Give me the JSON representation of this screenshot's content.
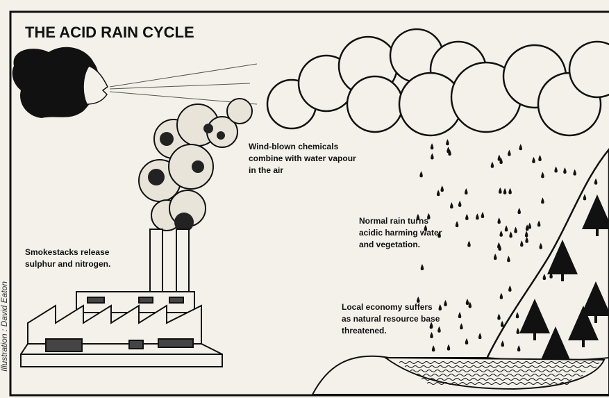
{
  "title": "THE ACID RAIN CYCLE",
  "credit": "Illustration : David Eaton",
  "labels": [
    {
      "lines": [
        "Wind-blown chemicals",
        "combine with water vapour",
        "in the air"
      ]
    },
    {
      "lines": [
        "Smokestacks release",
        "sulphur and nitrogen."
      ]
    },
    {
      "lines": [
        "Normal rain turns",
        "acidic harming water",
        "and vegetation."
      ]
    },
    {
      "lines": [
        "Local economy suffers",
        "as natural resource base",
        "threatened."
      ]
    }
  ]
}
